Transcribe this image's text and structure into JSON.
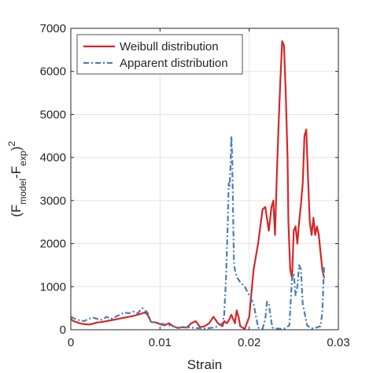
{
  "chart_data": {
    "type": "line",
    "xlabel": "Strain",
    "ylabel": {
      "prefix": "(F",
      "sub1": "model",
      "mid": "-F",
      "sub2": "exp",
      "suffix": ")",
      "sup": "2"
    },
    "xlim": [
      0,
      0.03
    ],
    "ylim": [
      0,
      7000
    ],
    "xticks": [
      0,
      0.01,
      0.02,
      0.03
    ],
    "xtick_labels": [
      "0",
      "0.01",
      "0.02",
      "0.03"
    ],
    "yticks": [
      0,
      1000,
      2000,
      3000,
      4000,
      5000,
      6000,
      7000
    ],
    "ytick_labels": [
      "0",
      "1000",
      "2000",
      "3000",
      "4000",
      "5000",
      "6000",
      "7000"
    ],
    "grid": true,
    "legend_position": "top-left",
    "series": [
      {
        "name": "Weibull distribution",
        "color": "#d62728",
        "style": "solid",
        "x": [
          0.0,
          0.0003,
          0.0006,
          0.001,
          0.0015,
          0.002,
          0.0025,
          0.003,
          0.0035,
          0.004,
          0.0045,
          0.005,
          0.0055,
          0.006,
          0.0065,
          0.007,
          0.0075,
          0.008,
          0.0083,
          0.0086,
          0.009,
          0.0095,
          0.01,
          0.0105,
          0.011,
          0.0115,
          0.012,
          0.0125,
          0.013,
          0.0135,
          0.014,
          0.0145,
          0.015,
          0.0155,
          0.016,
          0.0165,
          0.017,
          0.0172,
          0.0175,
          0.0178,
          0.018,
          0.0182,
          0.0184,
          0.0186,
          0.0188,
          0.019,
          0.0195,
          0.02,
          0.0205,
          0.021,
          0.0215,
          0.0218,
          0.0222,
          0.0225,
          0.0227,
          0.0229,
          0.0231,
          0.0233,
          0.0235,
          0.0237,
          0.0239,
          0.0241,
          0.0243,
          0.0244,
          0.0246,
          0.0248,
          0.025,
          0.0252,
          0.0254,
          0.0256,
          0.0258,
          0.026,
          0.0262,
          0.0264,
          0.0266,
          0.0268,
          0.027,
          0.0272,
          0.0274,
          0.0276,
          0.0278,
          0.028,
          0.0282,
          0.0284
        ],
        "y": [
          250,
          200,
          180,
          150,
          130,
          120,
          140,
          170,
          180,
          200,
          220,
          240,
          260,
          280,
          300,
          320,
          350,
          380,
          400,
          350,
          180,
          170,
          130,
          100,
          150,
          80,
          40,
          60,
          50,
          150,
          200,
          60,
          80,
          150,
          300,
          150,
          80,
          200,
          150,
          250,
          350,
          250,
          150,
          450,
          300,
          80,
          20,
          300,
          1400,
          2000,
          2800,
          2850,
          2300,
          2850,
          3000,
          2200,
          3600,
          4800,
          5800,
          6700,
          6600,
          5500,
          4000,
          2500,
          1400,
          1200,
          2300,
          2400,
          2000,
          2500,
          2900,
          3400,
          4500,
          4650,
          3500,
          2500,
          2200,
          2600,
          2200,
          2400,
          2200,
          1800,
          1400,
          1200
        ]
      },
      {
        "name": "Apparent distribution",
        "color": "#4a7fb5",
        "style": "dashdot",
        "x": [
          0.0,
          0.0005,
          0.001,
          0.0015,
          0.002,
          0.0025,
          0.003,
          0.0035,
          0.004,
          0.0045,
          0.005,
          0.0055,
          0.006,
          0.0065,
          0.007,
          0.0075,
          0.008,
          0.0083,
          0.0086,
          0.009,
          0.01,
          0.011,
          0.012,
          0.013,
          0.014,
          0.015,
          0.016,
          0.0165,
          0.017,
          0.0172,
          0.0174,
          0.0176,
          0.0177,
          0.0178,
          0.0179,
          0.018,
          0.0181,
          0.0182,
          0.0183,
          0.0184,
          0.0185,
          0.0187,
          0.019,
          0.0195,
          0.02,
          0.0205,
          0.021,
          0.0215,
          0.0218,
          0.022,
          0.0222,
          0.0224,
          0.0226,
          0.023,
          0.0235,
          0.024,
          0.0245,
          0.0248,
          0.025,
          0.0252,
          0.0254,
          0.0256,
          0.0258,
          0.026,
          0.0265,
          0.027,
          0.0275,
          0.028,
          0.0282,
          0.0284
        ],
        "y": [
          300,
          250,
          220,
          200,
          250,
          280,
          250,
          230,
          300,
          250,
          300,
          350,
          400,
          380,
          420,
          380,
          500,
          450,
          400,
          180,
          150,
          100,
          50,
          60,
          40,
          30,
          50,
          80,
          150,
          350,
          1200,
          2500,
          3400,
          3300,
          3800,
          4500,
          4000,
          2600,
          1500,
          1400,
          1300,
          1200,
          1100,
          1000,
          800,
          600,
          50,
          20,
          250,
          650,
          600,
          300,
          50,
          30,
          20,
          30,
          100,
          1200,
          1300,
          800,
          1000,
          1500,
          1400,
          600,
          100,
          30,
          50,
          80,
          400,
          1500
        ]
      }
    ]
  }
}
